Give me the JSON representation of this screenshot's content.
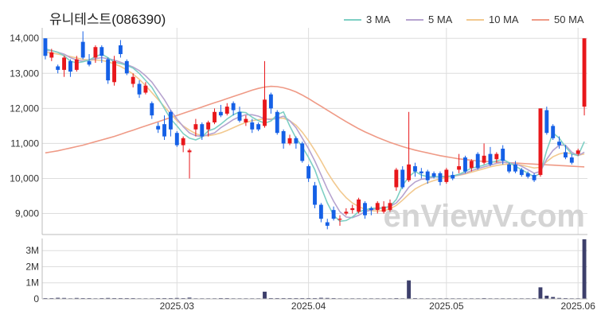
{
  "title": "유니테스트(086390)",
  "watermark": "enViewV.com",
  "legend": [
    {
      "label": "3 MA",
      "color": "#7ecfc4"
    },
    {
      "label": "5 MA",
      "color": "#b6a3cf"
    },
    {
      "label": "10 MA",
      "color": "#f2c98f"
    },
    {
      "label": "50 MA",
      "color": "#ef9a86"
    }
  ],
  "colors": {
    "up": "#e8171b",
    "down": "#1560e6",
    "volume": "#3d3f6b",
    "grid": "#dddddd"
  },
  "chart_data": {
    "type": "candlestick",
    "x_tick_labels": [
      "2025.03",
      "2025.04",
      "2025.05",
      "2025.06"
    ],
    "price_axis": {
      "ticks": [
        "9,000",
        "10,000",
        "11,000",
        "12,000",
        "13,000",
        "14,000"
      ],
      "range": [
        8400,
        14300
      ]
    },
    "volume_axis": {
      "ticks": [
        "0",
        "1M",
        "2M",
        "3M"
      ],
      "range": [
        0,
        3750000
      ]
    },
    "candles": [
      [
        14000,
        13500,
        14000,
        13400
      ],
      [
        13450,
        13600,
        13700,
        13350
      ],
      [
        13200,
        13100,
        13250,
        13000
      ],
      [
        13100,
        13450,
        13500,
        12900
      ],
      [
        13350,
        13050,
        13400,
        12900
      ],
      [
        13100,
        13400,
        13500,
        13050
      ],
      [
        13900,
        13450,
        14200,
        13400
      ],
      [
        13350,
        13250,
        13550,
        13200
      ],
      [
        13450,
        13750,
        13800,
        13300
      ],
      [
        13750,
        13500,
        13800,
        13300
      ],
      [
        13400,
        12800,
        13450,
        12700
      ],
      [
        12750,
        13350,
        13500,
        12650
      ],
      [
        13800,
        13550,
        13950,
        13450
      ],
      [
        13350,
        13000,
        13400,
        12950
      ],
      [
        12700,
        12900,
        13000,
        12600
      ],
      [
        12700,
        12400,
        12800,
        12300
      ],
      [
        12450,
        12650,
        12750,
        12400
      ],
      [
        12150,
        11800,
        12200,
        11700
      ],
      [
        11500,
        11400,
        11600,
        11300
      ],
      [
        11550,
        11200,
        11800,
        11100
      ],
      [
        11900,
        11400,
        11950,
        11200
      ],
      [
        11300,
        10950,
        11350,
        10900
      ],
      [
        10950,
        11150,
        11200,
        10750
      ],
      [
        10750,
        10800,
        10850,
        10000
      ],
      [
        11400,
        11550,
        11700,
        11200
      ],
      [
        11550,
        11200,
        11600,
        11100
      ],
      [
        11400,
        11600,
        11650,
        11200
      ],
      [
        11600,
        11900,
        12000,
        11550
      ],
      [
        11900,
        11800,
        12100,
        11750
      ],
      [
        11850,
        12050,
        12150,
        11800
      ],
      [
        12150,
        11950,
        12200,
        11800
      ],
      [
        11900,
        11650,
        12050,
        11600
      ],
      [
        11600,
        11700,
        11800,
        11500
      ],
      [
        11600,
        11400,
        11700,
        11300
      ],
      [
        11550,
        11400,
        11600,
        11350
      ],
      [
        11500,
        12250,
        13350,
        11450
      ],
      [
        12400,
        12000,
        12450,
        11850
      ],
      [
        11900,
        11300,
        11950,
        11250
      ],
      [
        11350,
        11000,
        11400,
        10850
      ],
      [
        11000,
        11150,
        11250,
        10950
      ],
      [
        11150,
        11000,
        11200,
        10850
      ],
      [
        11000,
        10500,
        11050,
        10450
      ],
      [
        10350,
        10000,
        10400,
        9900
      ],
      [
        9800,
        9250,
        9900,
        9150
      ],
      [
        9250,
        8850,
        9300,
        8750
      ],
      [
        8750,
        8650,
        8850,
        8550
      ],
      [
        9100,
        8850,
        9200,
        8800
      ],
      [
        8850,
        8850,
        8950,
        8650
      ],
      [
        9000,
        9050,
        9150,
        8950
      ],
      [
        9100,
        9150,
        9250,
        9000
      ],
      [
        9050,
        9400,
        9450,
        9000
      ],
      [
        9300,
        8950,
        9350,
        8850
      ],
      [
        9150,
        9100,
        9200,
        8950
      ],
      [
        9100,
        9300,
        9350,
        9000
      ],
      [
        9050,
        9200,
        9350,
        9000
      ],
      [
        9100,
        9300,
        9400,
        9050
      ],
      [
        9750,
        10250,
        10300,
        9650
      ],
      [
        10250,
        9750,
        10350,
        9700
      ],
      [
        9950,
        10400,
        11900,
        9900
      ],
      [
        10350,
        10200,
        10450,
        10050
      ],
      [
        10200,
        10150,
        10300,
        10000
      ],
      [
        10200,
        9950,
        10250,
        9850
      ],
      [
        10150,
        10050,
        10200,
        10000
      ],
      [
        10150,
        9900,
        10200,
        9800
      ],
      [
        9900,
        10250,
        10300,
        9850
      ],
      [
        10100,
        10000,
        10200,
        9950
      ],
      [
        10250,
        10350,
        10700,
        10150
      ],
      [
        10600,
        10200,
        10650,
        10150
      ],
      [
        10300,
        10500,
        10550,
        10200
      ],
      [
        10700,
        10300,
        10750,
        10250
      ],
      [
        10450,
        10650,
        11000,
        10400
      ],
      [
        10700,
        10400,
        10900,
        10350
      ],
      [
        10550,
        10700,
        10750,
        10450
      ],
      [
        10850,
        10500,
        10950,
        10400
      ],
      [
        10400,
        10200,
        10450,
        10150
      ],
      [
        10400,
        10200,
        10500,
        10150
      ],
      [
        10250,
        10100,
        10300,
        10050
      ],
      [
        10150,
        10050,
        10200,
        10000
      ],
      [
        10100,
        9950,
        10150,
        9900
      ],
      [
        10100,
        12000,
        12000,
        10050
      ],
      [
        11950,
        11300,
        12050,
        11250
      ],
      [
        11500,
        11150,
        11550,
        11100
      ],
      [
        11050,
        10950,
        11200,
        10850
      ],
      [
        10750,
        10600,
        10950,
        10550
      ],
      [
        10600,
        10450,
        10700,
        10400
      ],
      [
        10700,
        10800,
        10850,
        10650
      ],
      [
        12050,
        14000,
        14000,
        11800
      ]
    ],
    "volume_millions": [
      0.05,
      0.05,
      0.07,
      0.06,
      0.04,
      0.06,
      0.05,
      0.05,
      0.04,
      0.05,
      0.06,
      0.05,
      0.05,
      0.05,
      0.05,
      0.04,
      0.04,
      0.04,
      0.05,
      0.05,
      0.05,
      0.06,
      0.05,
      0.08,
      0.04,
      0.04,
      0.04,
      0.04,
      0.05,
      0.05,
      0.04,
      0.04,
      0.04,
      0.04,
      0.04,
      0.45,
      0.05,
      0.05,
      0.05,
      0.05,
      0.05,
      0.05,
      0.05,
      0.05,
      0.07,
      0.06,
      0.05,
      0.04,
      0.04,
      0.04,
      0.04,
      0.04,
      0.04,
      0.04,
      0.04,
      0.04,
      0.05,
      0.04,
      1.15,
      0.05,
      0.04,
      0.04,
      0.04,
      0.04,
      0.04,
      0.04,
      0.04,
      0.04,
      0.04,
      0.04,
      0.05,
      0.04,
      0.04,
      0.04,
      0.04,
      0.04,
      0.04,
      0.04,
      0.05,
      0.72,
      0.2,
      0.12,
      0.06,
      0.05,
      0.04,
      0.04,
      3.7
    ],
    "ma3": [
      13700,
      13650,
      13600,
      13500,
      13350,
      13300,
      13330,
      13380,
      13480,
      13550,
      13450,
      13320,
      13280,
      13230,
      13150,
      13000,
      12800,
      12600,
      12300,
      12000,
      11700,
      11500,
      11280,
      11150,
      11100,
      11180,
      11360,
      11420,
      11550,
      11700,
      11820,
      11900,
      11880,
      11750,
      11650,
      11580,
      11640,
      11820,
      11900,
      11500,
      11150,
      10900,
      10600,
      10250,
      9750,
      9300,
      8950,
      8780,
      8800,
      8900,
      9050,
      9100,
      9150,
      9150,
      9150,
      9200,
      9400,
      9800,
      10050,
      10200,
      10100,
      10050,
      10050,
      10050,
      10060,
      10070,
      10120,
      10200,
      10300,
      10330,
      10380,
      10450,
      10500,
      10550,
      10450,
      10350,
      10250,
      10150,
      10050,
      10150,
      10800,
      11300,
      11150,
      10900,
      10700,
      10650,
      11050
    ],
    "ma5": [
      13650,
      13650,
      13600,
      13550,
      13450,
      13380,
      13350,
      13380,
      13420,
      13450,
      13420,
      13380,
      13320,
      13250,
      13180,
      13080,
      12930,
      12750,
      12500,
      12250,
      11950,
      11700,
      11480,
      11300,
      11220,
      11200,
      11250,
      11300,
      11450,
      11560,
      11680,
      11760,
      11820,
      11820,
      11780,
      11700,
      11680,
      11720,
      11780,
      11650,
      11450,
      11150,
      10850,
      10500,
      10100,
      9700,
      9350,
      9050,
      8900,
      8880,
      8950,
      9050,
      9100,
      9150,
      9170,
      9200,
      9300,
      9500,
      9750,
      9900,
      9980,
      10000,
      10040,
      10050,
      10060,
      10070,
      10100,
      10150,
      10220,
      10280,
      10330,
      10380,
      10430,
      10460,
      10450,
      10420,
      10350,
      10250,
      10150,
      10200,
      10550,
      10800,
      10950,
      10950,
      10750,
      10650,
      10750
    ],
    "ma10": [
      13600,
      13580,
      13550,
      13520,
      13480,
      13440,
      13400,
      13380,
      13380,
      13370,
      13330,
      13270,
      13200,
      13100,
      12980,
      12830,
      12650,
      12450,
      12250,
      12050,
      11850,
      11650,
      11500,
      11380,
      11280,
      11220,
      11220,
      11250,
      11300,
      11370,
      11450,
      11530,
      11600,
      11650,
      11680,
      11700,
      11700,
      11720,
      11720,
      11650,
      11520,
      11320,
      11080,
      10800,
      10500,
      10180,
      9900,
      9650,
      9450,
      9300,
      9200,
      9120,
      9080,
      9070,
      9080,
      9130,
      9230,
      9380,
      9550,
      9700,
      9800,
      9880,
      9940,
      9990,
      10030,
      10060,
      10090,
      10130,
      10180,
      10230,
      10280,
      10330,
      10370,
      10400,
      10410,
      10400,
      10380,
      10340,
      10300,
      10320,
      10480,
      10620,
      10700,
      10740,
      10700,
      10660,
      10700
    ],
    "ma50": [
      10730,
      10760,
      10790,
      10830,
      10870,
      10910,
      10950,
      11000,
      11050,
      11100,
      11150,
      11200,
      11260,
      11320,
      11380,
      11440,
      11500,
      11560,
      11620,
      11680,
      11740,
      11800,
      11860,
      11920,
      11980,
      12040,
      12100,
      12160,
      12220,
      12280,
      12340,
      12400,
      12460,
      12520,
      12570,
      12610,
      12630,
      12620,
      12590,
      12540,
      12470,
      12380,
      12280,
      12170,
      12060,
      11950,
      11840,
      11730,
      11620,
      11520,
      11420,
      11330,
      11250,
      11170,
      11100,
      11030,
      10970,
      10910,
      10860,
      10810,
      10770,
      10730,
      10690,
      10650,
      10620,
      10590,
      10560,
      10540,
      10520,
      10500,
      10490,
      10480,
      10470,
      10460,
      10450,
      10440,
      10430,
      10420,
      10410,
      10400,
      10390,
      10380,
      10370,
      10360,
      10350,
      10340,
      10330
    ]
  }
}
